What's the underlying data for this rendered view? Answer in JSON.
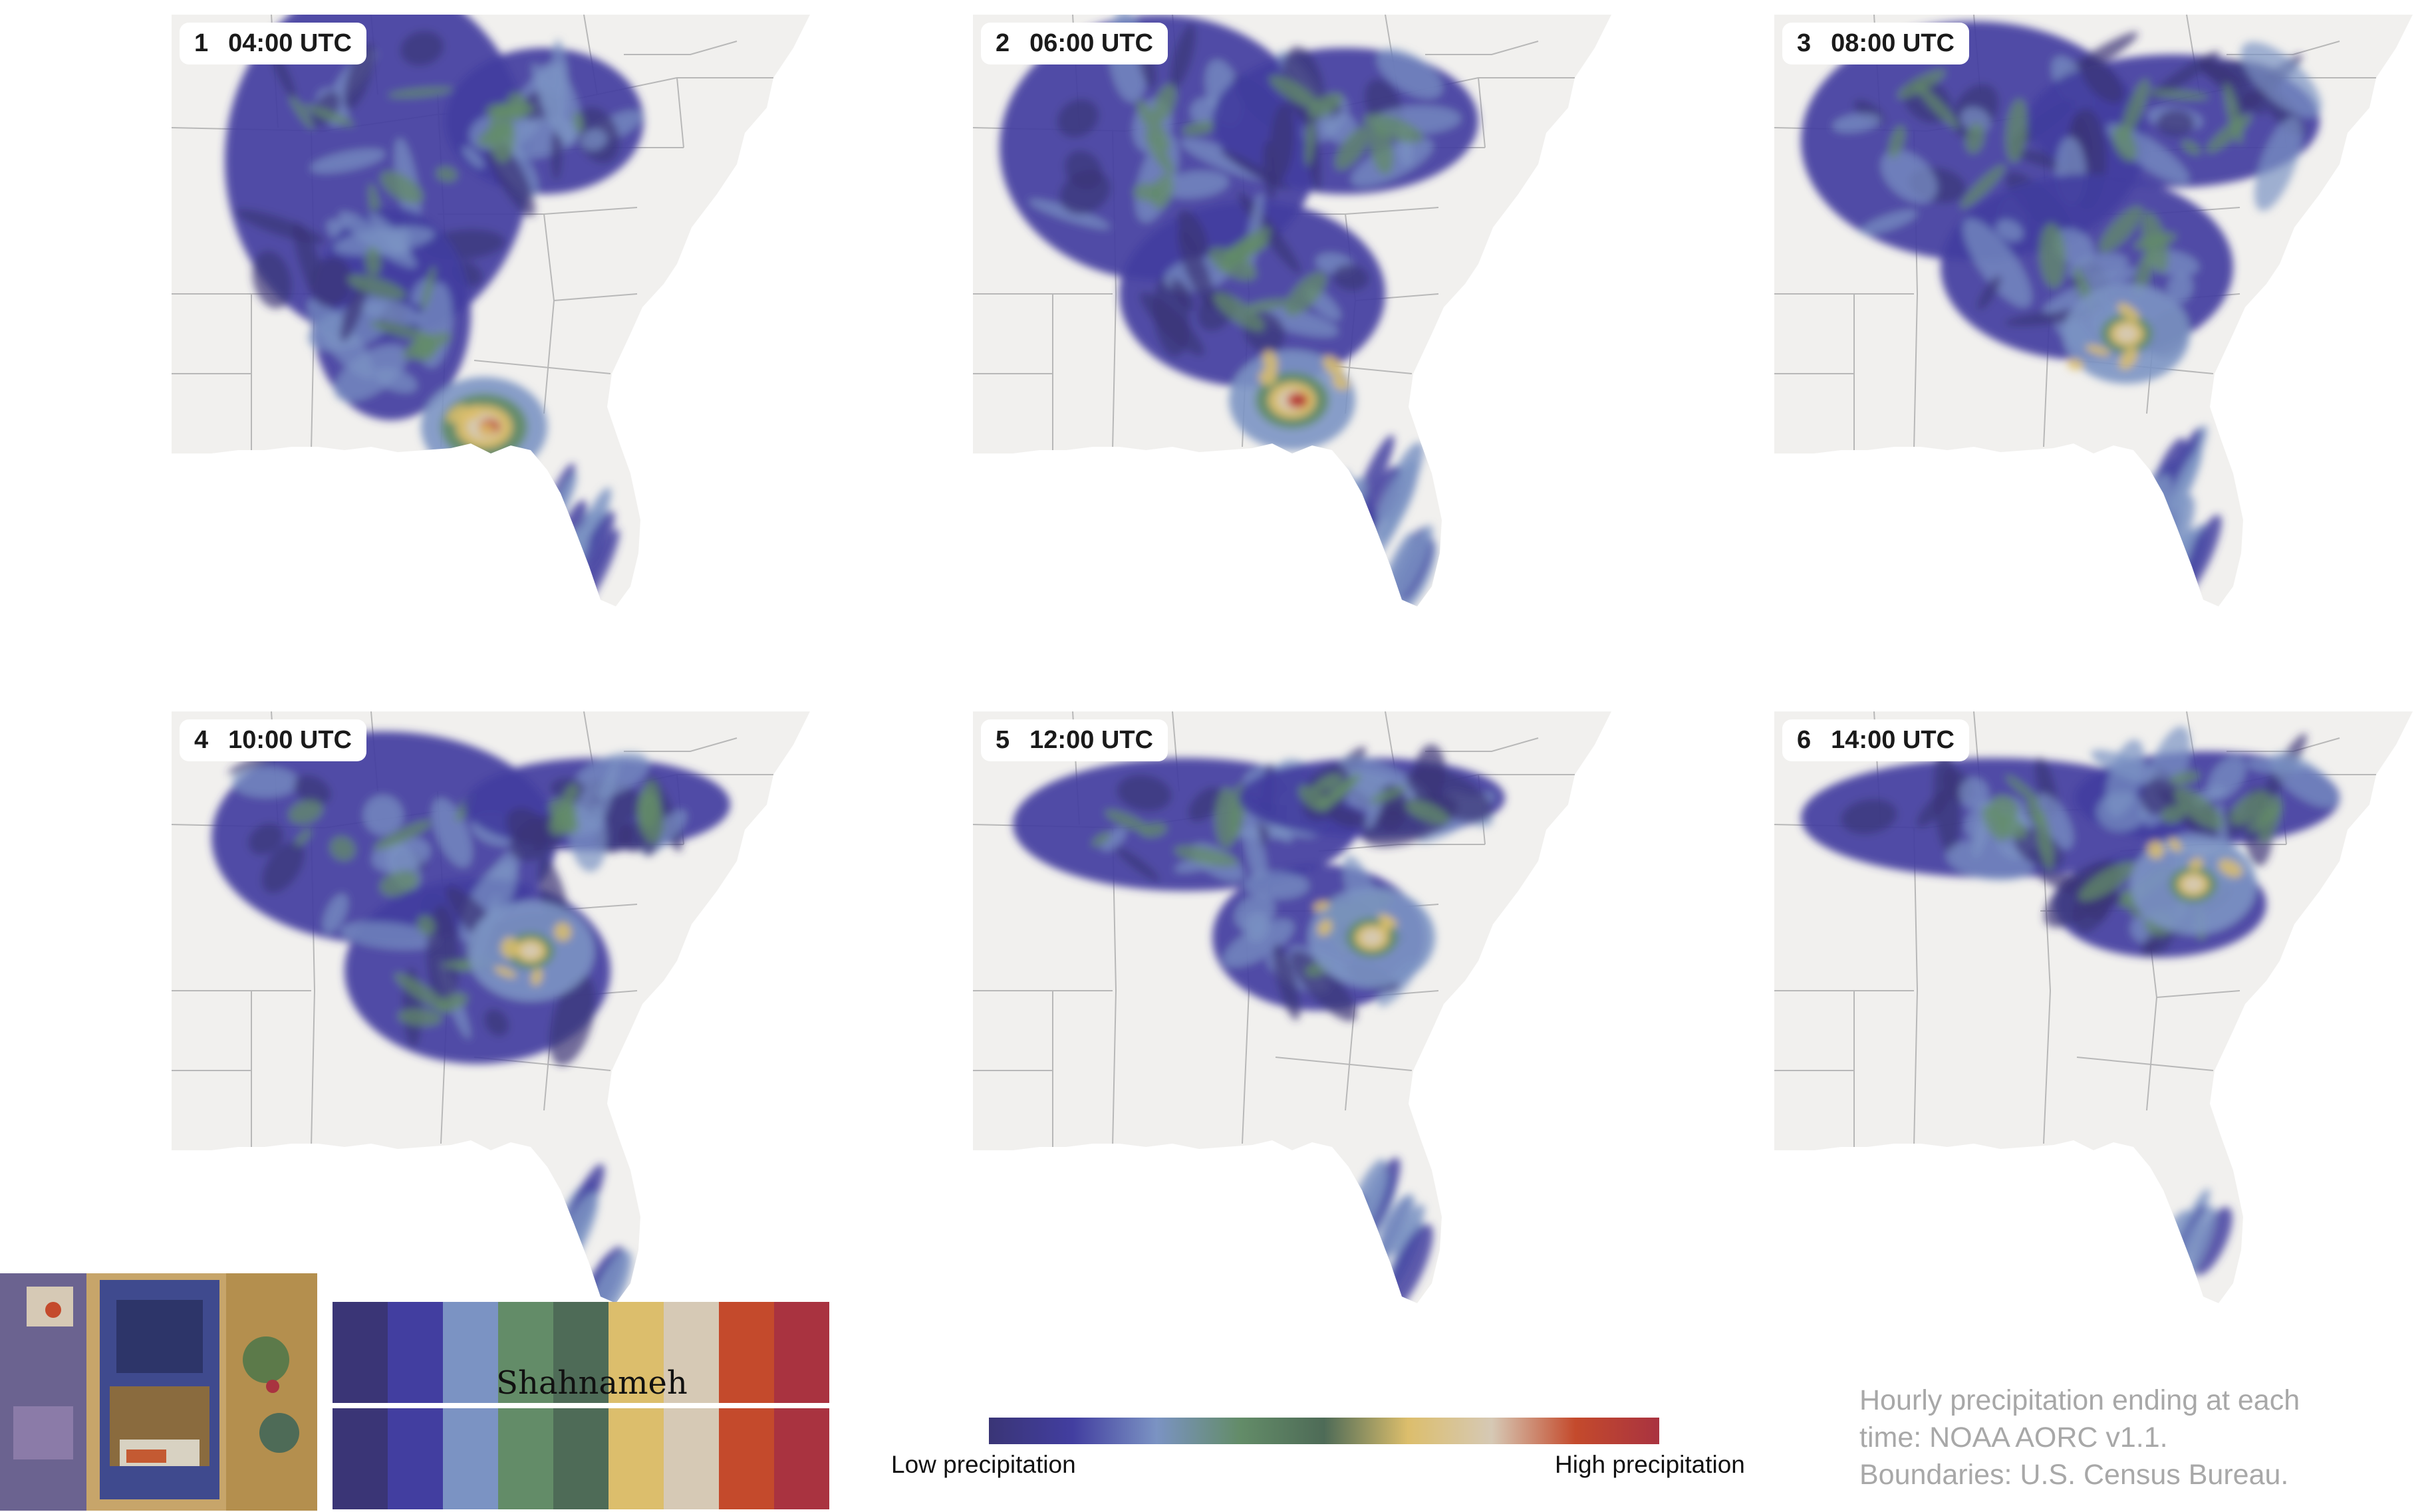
{
  "panels": [
    {
      "number": "1",
      "time": "04:00 UTC",
      "storm_intensity": 1.0
    },
    {
      "number": "2",
      "time": "06:00 UTC",
      "storm_intensity": 0.85
    },
    {
      "number": "3",
      "time": "08:00 UTC",
      "storm_intensity": 0.6
    },
    {
      "number": "4",
      "time": "10:00 UTC",
      "storm_intensity": 0.55
    },
    {
      "number": "5",
      "time": "12:00 UTC",
      "storm_intensity": 0.6
    },
    {
      "number": "6",
      "time": "14:00 UTC",
      "storm_intensity": 0.55
    }
  ],
  "palette": {
    "name": "Shahnameh",
    "colors": [
      "#3a3576",
      "#423ea0",
      "#7b93c3",
      "#638c68",
      "#4e6b57",
      "#dcbe6c",
      "#d6c9b5",
      "#c44a2c",
      "#a93340"
    ]
  },
  "legend": {
    "low_label": "Low precipitation",
    "high_label": "High precipitation",
    "gradient": [
      "#3a3576",
      "#423ea0",
      "#7b93c3",
      "#638c68",
      "#4e6b57",
      "#dcbe6c",
      "#d6c9b5",
      "#c44a2c",
      "#a93340"
    ]
  },
  "credit": {
    "line1": "Hourly precipitation ending at each",
    "line2": "time: NOAA AORC v1.1.",
    "line3": "Boundaries: U.S. Census Bureau."
  },
  "colors": {
    "land": "#f1f0ee",
    "state_border": "#b8b8b8",
    "credit_text": "#a8a8a8"
  }
}
